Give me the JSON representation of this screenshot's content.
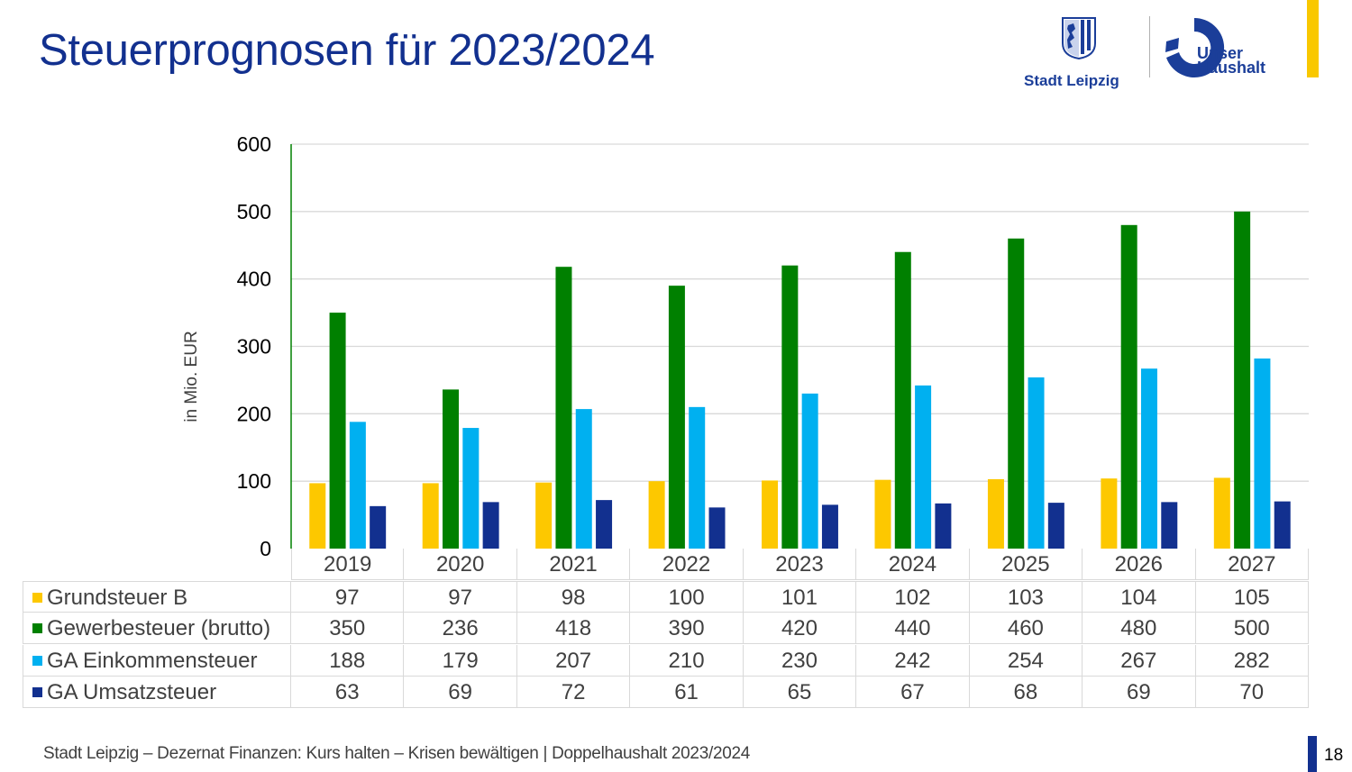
{
  "header": {
    "title": "Steuerprognosen für 2023/2024",
    "logo_city": "Stadt Leipzig",
    "logo_haushalt_line1": "Unser",
    "logo_haushalt_line2": "Haushalt"
  },
  "colors": {
    "brand_blue": "#12308f",
    "accent_yellow": "#f9c800",
    "grundsteuer": "#fdc800",
    "gewerbesteuer": "#008000",
    "einkommensteuer": "#00b0f0",
    "umsatzsteuer": "#12308f"
  },
  "chart_data": {
    "type": "bar",
    "title": "Steuerprognosen für 2023/2024",
    "xlabel": "",
    "ylabel": "in Mio. EUR",
    "ylim": [
      0,
      600
    ],
    "yticks": [
      "0",
      "100",
      "200",
      "300",
      "400",
      "500",
      "600"
    ],
    "grid": true,
    "legend": "data-table-below",
    "categories": [
      "2019",
      "2020",
      "2021",
      "2022",
      "2023",
      "2024",
      "2025",
      "2026",
      "2027"
    ],
    "series": [
      {
        "name": "Grundsteuer B",
        "color": "#fdc800",
        "values": [
          97,
          97,
          98,
          100,
          101,
          102,
          103,
          104,
          105
        ]
      },
      {
        "name": "Gewerbesteuer (brutto)",
        "color": "#008000",
        "values": [
          350,
          236,
          418,
          390,
          420,
          440,
          460,
          480,
          500
        ]
      },
      {
        "name": "GA Einkommensteuer",
        "color": "#00b0f0",
        "values": [
          188,
          179,
          207,
          210,
          230,
          242,
          254,
          267,
          282
        ]
      },
      {
        "name": "GA Umsatzsteuer",
        "color": "#12308f",
        "values": [
          63,
          69,
          72,
          61,
          65,
          67,
          68,
          69,
          70
        ]
      }
    ]
  },
  "footer": {
    "text": "Stadt Leipzig  – Dezernat Finanzen: Kurs halten – Krisen bewältigen | Doppelhaushalt 2023/2024",
    "page_number": "18"
  }
}
